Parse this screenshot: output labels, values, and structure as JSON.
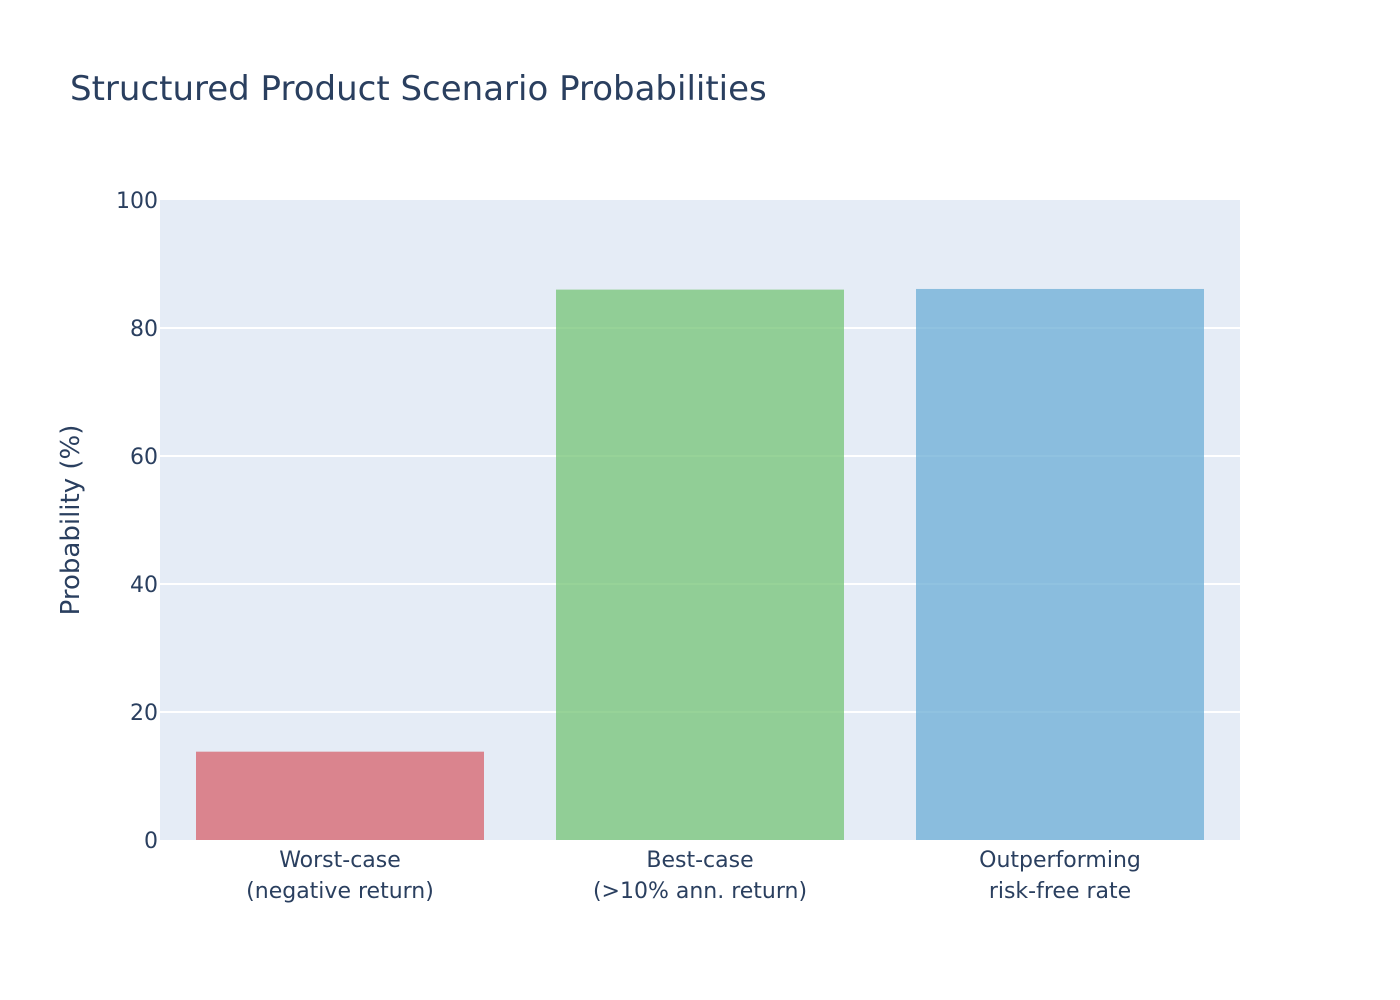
{
  "chart_data": {
    "type": "bar",
    "title": "Structured Product Scenario Probabilities",
    "xlabel": "",
    "ylabel": "Probability (%)",
    "ylim": [
      0,
      100
    ],
    "yticks": [
      0,
      20,
      40,
      60,
      80,
      100
    ],
    "grid": true,
    "categories": [
      [
        "Worst-case",
        "(negative return)"
      ],
      [
        "Best-case",
        "(>10% ann. return)"
      ],
      [
        "Outperforming",
        "risk-free rate"
      ]
    ],
    "values": [
      13.8,
      86.0,
      86.1
    ],
    "colors": [
      "#d6616b",
      "#74c476",
      "#6baed6"
    ],
    "plot_bg": "#e5ecf6",
    "text_color": "#2a3f5f"
  }
}
